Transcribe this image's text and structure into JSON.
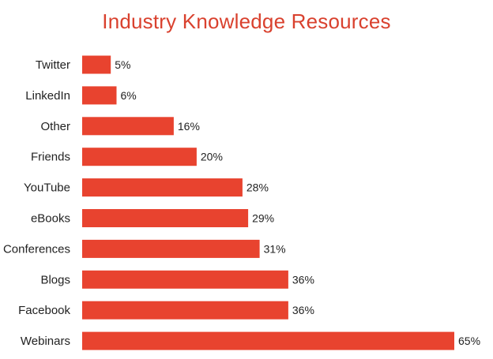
{
  "chart_data": {
    "type": "bar",
    "orientation": "horizontal",
    "title": "Industry Knowledge Resources",
    "xlabel": "",
    "ylabel": "",
    "categories": [
      "Twitter",
      "LinkedIn",
      "Other",
      "Friends",
      "YouTube",
      "eBooks",
      "Conferences",
      "Blogs",
      "Facebook",
      "Webinars"
    ],
    "values": [
      5,
      6,
      16,
      20,
      28,
      29,
      31,
      36,
      36,
      65
    ],
    "value_labels": [
      "5%",
      "6%",
      "16%",
      "20%",
      "28%",
      "29%",
      "31%",
      "36%",
      "36%",
      "65%"
    ],
    "xlim": [
      0,
      65
    ],
    "grid": false,
    "legend": "none",
    "bar_color": "#e8432f"
  }
}
